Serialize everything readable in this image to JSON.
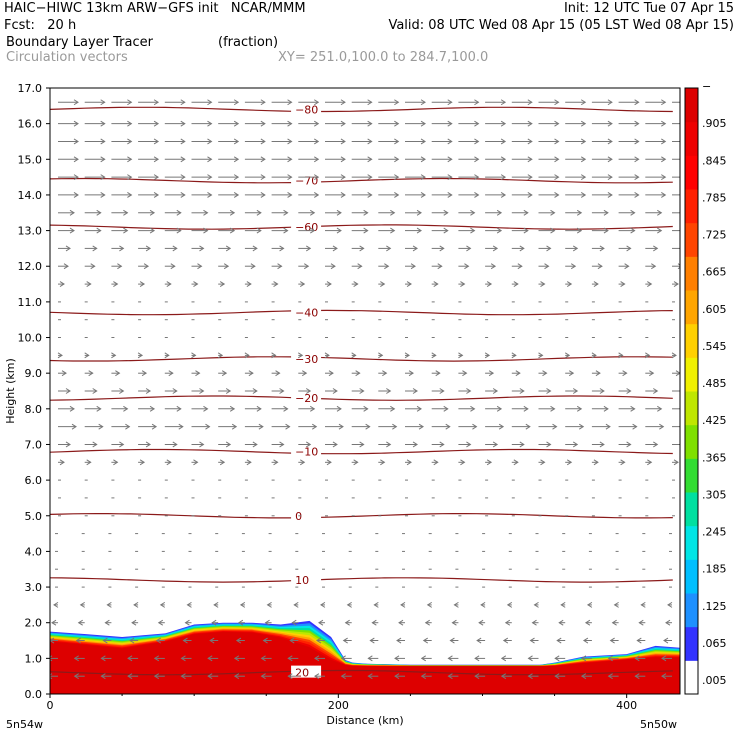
{
  "header": {
    "line1_left": "HAIC−HIWC 13km ARW−GFS init   NCAR/MMM",
    "line1_right": "Init: 12 UTC Tue 07 Apr 15",
    "line2_left": "Fcst:   20 h",
    "line2_right": "Valid: 08 UTC Wed 08 Apr 15 (05 LST Wed 08 Apr 15)",
    "field_name": "Boundary Layer Tracer",
    "field_units": "(fraction)",
    "overlay_name": "Circulation vectors",
    "cross_section": "XY= 251.0,100.0 to 284.7,100.0"
  },
  "chart_data": {
    "type": "heatmap",
    "title": "Boundary Layer Tracer",
    "units": "(fraction)",
    "xlabel": "Distance (km)",
    "ylabel": "Height (km)",
    "xlim": [
      0,
      437
    ],
    "ylim": [
      0,
      17
    ],
    "x_ticks": [
      "0",
      "200",
      "400"
    ],
    "x_end_labels": [
      "5n54w",
      "5n50w"
    ],
    "y_ticks": [
      "0.0",
      "1.0",
      "2.0",
      "3.0",
      "4.0",
      "5.0",
      "6.0",
      "7.0",
      "8.0",
      "9.0",
      "10.0",
      "11.0",
      "12.0",
      "13.0",
      "14.0",
      "15.0",
      "16.0",
      "17.0"
    ],
    "colorbar": {
      "labels": [
        ".005",
        ".065",
        ".125",
        ".185",
        ".245",
        ".305",
        ".365",
        ".425",
        ".485",
        ".545",
        ".605",
        ".665",
        ".725",
        ".785",
        ".845",
        ".905",
        "−"
      ],
      "colors": [
        "#ffffff",
        "#3333ff",
        "#1e90ff",
        "#00bfff",
        "#00e5e5",
        "#00e0a0",
        "#33dd33",
        "#7fe000",
        "#bfe600",
        "#f0f000",
        "#ffd000",
        "#ffa500",
        "#ff7f00",
        "#ff4500",
        "#ff2000",
        "#ff0000",
        "#ee0000",
        "#dd0000"
      ]
    },
    "tracer_top_km": {
      "x": [
        0,
        25,
        50,
        80,
        100,
        120,
        140,
        160,
        180,
        195,
        205,
        210,
        220,
        250,
        300,
        340,
        350,
        370,
        400,
        420,
        437
      ],
      "full_top": [
        1.45,
        1.35,
        1.25,
        1.45,
        1.65,
        1.72,
        1.7,
        1.55,
        1.25,
        0.9,
        0.8,
        0.78,
        0.78,
        0.78,
        0.78,
        0.78,
        0.78,
        0.85,
        0.95,
        1.0,
        1.0
      ],
      "edge_top": [
        1.75,
        1.68,
        1.6,
        1.7,
        1.95,
        2.0,
        2.0,
        1.95,
        2.05,
        1.6,
        0.95,
        0.88,
        0.85,
        0.82,
        0.82,
        0.82,
        0.88,
        1.05,
        1.12,
        1.35,
        1.3
      ]
    },
    "isotherms": [
      {
        "label": "−80",
        "height_km": 16.4
      },
      {
        "label": "−70",
        "height_km": 14.4
      },
      {
        "label": "−60",
        "height_km": 13.1
      },
      {
        "label": "−40",
        "height_km": 10.7
      },
      {
        "label": "−30",
        "height_km": 9.4
      },
      {
        "label": "−20",
        "height_km": 8.3
      },
      {
        "label": "−10",
        "height_km": 6.8
      },
      {
        "label": "0",
        "height_km": 5.0
      },
      {
        "label": "10",
        "height_km": 3.2
      },
      {
        "label": "20",
        "height_km": 0.6
      }
    ],
    "vectors": {
      "description_levels_km": [
        16.6,
        16.0,
        15.5,
        15.0,
        14.5,
        14.0,
        13.5,
        13.0,
        12.5,
        12.0,
        11.5,
        11.0,
        10.5,
        10.0,
        9.5,
        9.0,
        8.5,
        8.0,
        7.5,
        7.0,
        6.5,
        6.0,
        5.5,
        5.0,
        4.5,
        4.0,
        3.5,
        3.0,
        2.5,
        2.0,
        1.5,
        1.0,
        0.5
      ],
      "u_relative": [
        1,
        1,
        1,
        1,
        1,
        1,
        0.8,
        0.8,
        0.6,
        0.5,
        0.3,
        0.1,
        0.1,
        0.0,
        0.2,
        0.4,
        0.6,
        0.8,
        0.9,
        0.6,
        0.3,
        0.1,
        0.0,
        0.0,
        -0.05,
        -0.1,
        -0.1,
        -0.1,
        -0.2,
        -0.3,
        -0.4,
        -0.5,
        -0.5
      ]
    }
  }
}
